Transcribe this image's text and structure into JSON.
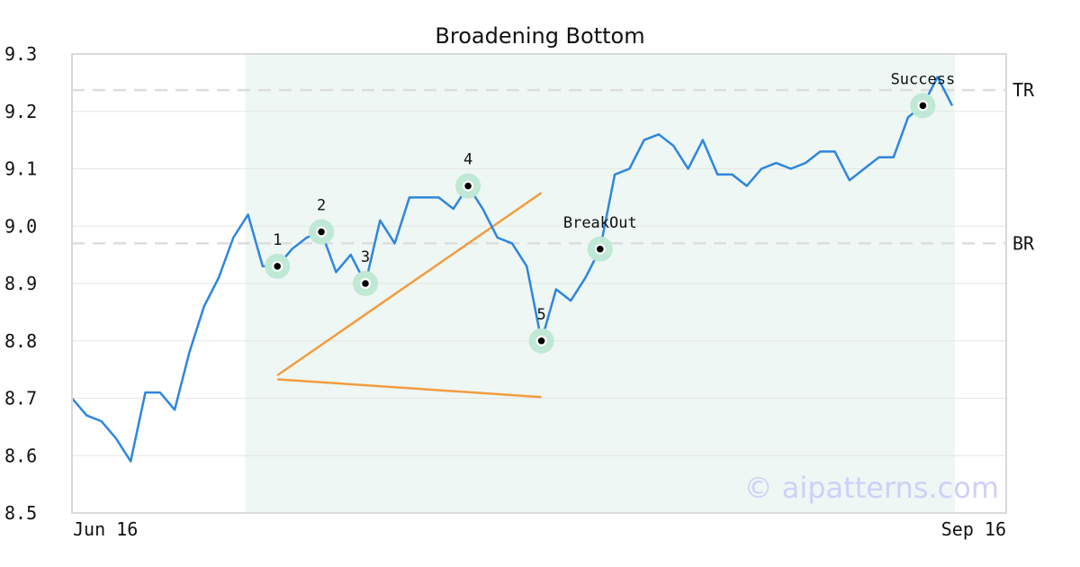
{
  "chart_data": {
    "type": "line",
    "title": "Broadening Bottom",
    "xlabel": "",
    "ylabel": "",
    "ylim": [
      8.5,
      9.3
    ],
    "y_ticks": [
      8.5,
      8.6,
      8.7,
      8.8,
      8.9,
      9.0,
      9.1,
      9.2,
      9.3
    ],
    "x_tick_labels": [
      "Jun 16",
      "Sep 16"
    ],
    "grid": "horizontal",
    "series": [
      {
        "values": [
          8.7,
          8.67,
          8.66,
          8.63,
          8.59,
          8.71,
          8.71,
          8.68,
          8.78,
          8.86,
          8.91,
          8.98,
          9.02,
          8.93,
          8.93,
          8.96,
          8.98,
          8.99,
          8.92,
          8.95,
          8.9,
          9.01,
          8.97,
          9.05,
          9.05,
          9.05,
          9.03,
          9.07,
          9.03,
          8.98,
          8.97,
          8.93,
          8.8,
          8.89,
          8.87,
          8.91,
          8.96,
          9.09,
          9.1,
          9.15,
          9.16,
          9.14,
          9.1,
          9.15,
          9.09,
          9.09,
          9.07,
          9.1,
          9.11,
          9.1,
          9.11,
          9.13,
          9.13,
          9.08,
          9.1,
          9.12,
          9.12,
          9.19,
          9.21,
          9.26,
          9.21
        ],
        "color": "#2e86de"
      }
    ],
    "pattern_region": {
      "start_index": 12,
      "end_index": 60,
      "color": "#eef7f3"
    },
    "reference_lines": [
      {
        "label": "TR",
        "value": 9.237
      },
      {
        "label": "BR",
        "value": 8.97
      }
    ],
    "trend_lines": [
      {
        "from": {
          "index": 14,
          "value": 8.74
        },
        "to": {
          "index": 32,
          "value": 9.058
        },
        "color": "#f39c40"
      },
      {
        "from": {
          "index": 14,
          "value": 8.733
        },
        "to": {
          "index": 32,
          "value": 8.702
        },
        "color": "#f39c40"
      }
    ],
    "annotations": [
      {
        "label": "1",
        "index": 14,
        "value": 8.93
      },
      {
        "label": "2",
        "index": 17,
        "value": 8.99
      },
      {
        "label": "3",
        "index": 20,
        "value": 8.9
      },
      {
        "label": "4",
        "index": 27,
        "value": 9.07
      },
      {
        "label": "5",
        "index": 32,
        "value": 8.8
      },
      {
        "label": "BreakOut",
        "index": 36,
        "value": 8.96
      },
      {
        "label": "Success",
        "index": 58,
        "value": 9.21
      }
    ],
    "watermark": "© aipatterns.com"
  }
}
